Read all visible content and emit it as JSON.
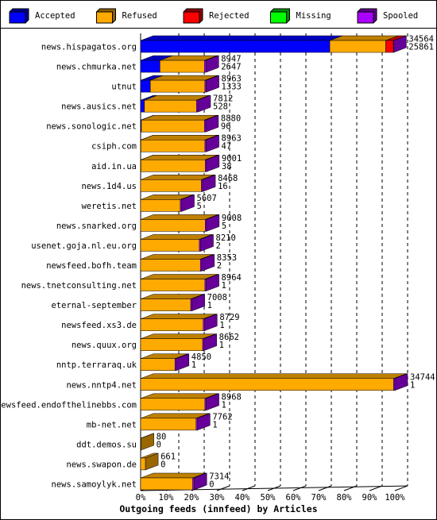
{
  "chart_data": {
    "type": "stacked-bar-3d",
    "orientation": "horizontal",
    "x_label": "Outgoing feeds (innfeed) by Articles",
    "categories": [
      "news.hispagatos.org",
      "news.chmurka.net",
      "utnut",
      "news.ausics.net",
      "news.sonologic.net",
      "csiph.com",
      "aid.in.ua",
      "news.1d4.us",
      "weretis.net",
      "news.snarked.org",
      "usenet.goja.nl.eu.org",
      "newsfeed.bofh.team",
      "news.tnetconsulting.net",
      "eternal-september",
      "newsfeed.xs3.de",
      "news.quux.org",
      "nntp.terraraq.uk",
      "news.nntp4.net",
      "newsfeed.endofthelinebbs.com",
      "mb-net.net",
      "ddt.demos.su",
      "news.swapon.de",
      "news.samoylyk.net"
    ],
    "offered": [
      34564,
      8947,
      8963,
      7812,
      8880,
      8963,
      9001,
      8468,
      5607,
      9008,
      8210,
      8353,
      8964,
      7008,
      8729,
      8662,
      4850,
      34744,
      8968,
      7762,
      80,
      661,
      7314
    ],
    "accepted": [
      25861,
      2647,
      1333,
      528,
      96,
      47,
      38,
      16,
      5,
      5,
      2,
      2,
      1,
      1,
      1,
      1,
      1,
      1,
      1,
      1,
      0,
      0,
      0
    ],
    "series": [
      {
        "name": "Accepted",
        "color": "#0000ff",
        "values": [
          74.4,
          7.6,
          3.8,
          1.5,
          0.3,
          0.1,
          0.1,
          0,
          0,
          0,
          0,
          0,
          0,
          0,
          0,
          0,
          0,
          0,
          0,
          0,
          0,
          0,
          0
        ]
      },
      {
        "name": "Refused",
        "color": "#ffaa00",
        "values": [
          22,
          17.5,
          21.5,
          20.5,
          24.8,
          25.2,
          25.3,
          23.9,
          15.6,
          25.4,
          23.1,
          23.5,
          25.3,
          19.7,
          24.6,
          24.4,
          13.5,
          99.5,
          25.3,
          21.8,
          0.2,
          1.9,
          20.5
        ]
      },
      {
        "name": "Rejected",
        "color": "#ff0000",
        "values": [
          3,
          0,
          0,
          0,
          0,
          0,
          0,
          0,
          0,
          0,
          0,
          0,
          0,
          0,
          0,
          0,
          0,
          0,
          0,
          0,
          0,
          0,
          0
        ]
      },
      {
        "name": "Missing",
        "color": "#00ff00",
        "values": [
          0,
          0,
          0,
          0,
          0,
          0,
          0,
          0,
          0,
          0,
          0,
          0,
          0,
          0,
          0,
          0,
          0,
          0,
          0,
          0,
          0,
          0,
          0
        ]
      },
      {
        "name": "Spooled",
        "color": "#aa00ff",
        "values": [
          0.1,
          0.6,
          0.5,
          0.5,
          0.5,
          0.5,
          0.5,
          0.5,
          0.5,
          0.5,
          0.5,
          0.5,
          0.5,
          0.5,
          0.5,
          0.5,
          0.5,
          0.5,
          0.5,
          0.5,
          0,
          0,
          0.5
        ]
      }
    ],
    "xlim": [
      0,
      100
    ],
    "xticks": [
      {
        "value": 0,
        "label": "0%"
      },
      {
        "value": 10,
        "label": "10%"
      },
      {
        "value": 20,
        "label": "20%"
      },
      {
        "value": 30,
        "label": "30%"
      },
      {
        "value": 40,
        "label": "40%"
      },
      {
        "value": 50,
        "label": "50%"
      },
      {
        "value": 60,
        "label": "60%"
      },
      {
        "value": 70,
        "label": "70%"
      },
      {
        "value": 80,
        "label": "80%"
      },
      {
        "value": 90,
        "label": "90%"
      },
      {
        "value": 100,
        "label": "100%"
      }
    ],
    "grid": true
  }
}
